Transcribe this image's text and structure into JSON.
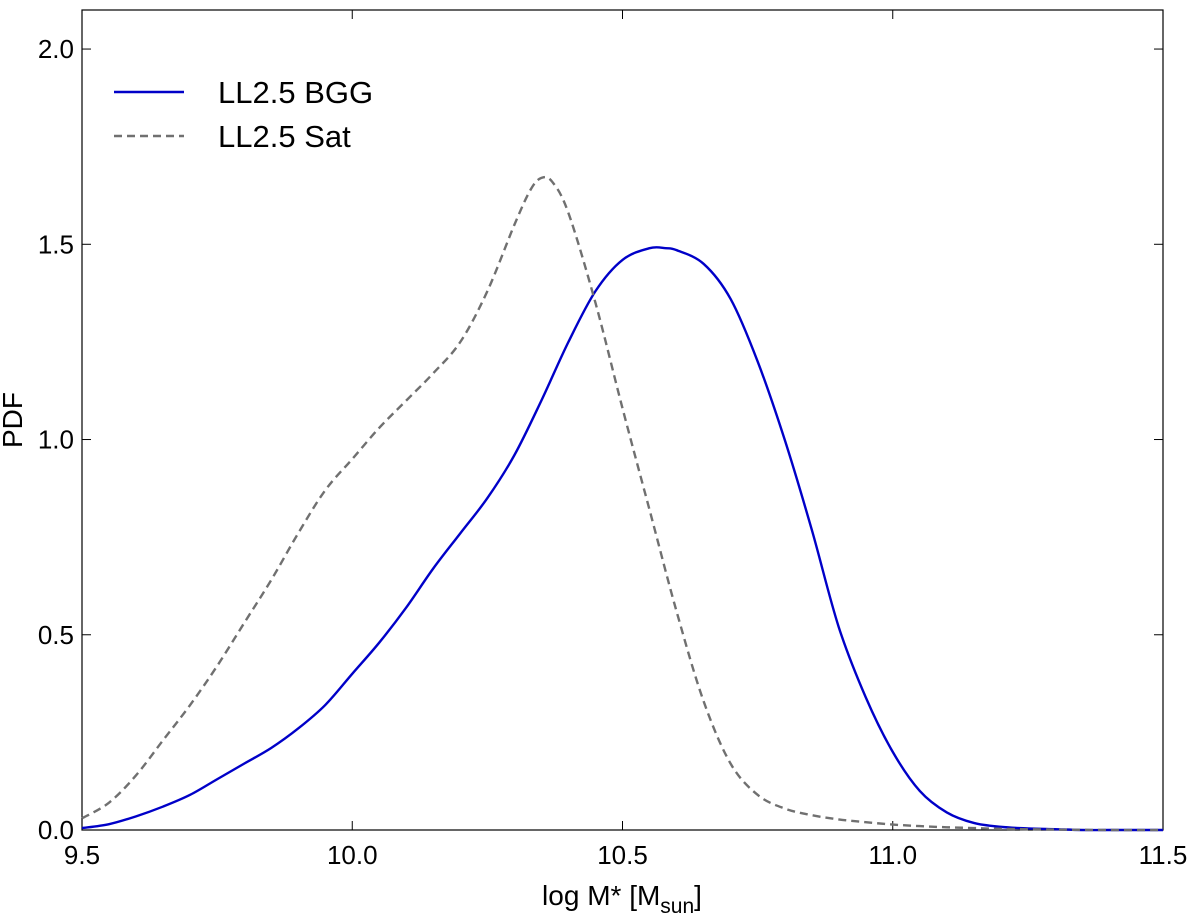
{
  "chart_data": {
    "type": "line",
    "title": "",
    "xlabel_main": "log M* [M",
    "xlabel_sub": "sun",
    "xlabel_end": "]",
    "ylabel": "PDF",
    "xlim": [
      9.5,
      11.5
    ],
    "ylim": [
      0.0,
      2.1
    ],
    "grid": false,
    "legend_position": "top-left",
    "x_ticks": [
      9.5,
      10.0,
      10.5,
      11.0,
      11.5
    ],
    "x_tick_labels": [
      "9.5",
      "10.0",
      "10.5",
      "11.0",
      "11.5"
    ],
    "y_ticks": [
      0.0,
      0.5,
      1.0,
      1.5,
      2.0
    ],
    "y_tick_labels": [
      "0.0",
      "0.5",
      "1.0",
      "1.5",
      "2.0"
    ],
    "series": [
      {
        "name": "LL2.5 BGG",
        "style": "solid",
        "color": "#0000c8",
        "x": [
          9.5,
          9.55,
          9.6,
          9.65,
          9.7,
          9.75,
          9.8,
          9.85,
          9.9,
          9.95,
          10.0,
          10.05,
          10.1,
          10.15,
          10.2,
          10.25,
          10.3,
          10.35,
          10.4,
          10.45,
          10.5,
          10.55,
          10.58,
          10.6,
          10.65,
          10.7,
          10.75,
          10.8,
          10.85,
          10.9,
          10.95,
          11.0,
          11.05,
          11.1,
          11.15,
          11.2,
          11.25,
          11.3,
          11.35,
          11.4,
          11.5
        ],
        "y": [
          0.005,
          0.015,
          0.035,
          0.06,
          0.09,
          0.13,
          0.17,
          0.21,
          0.26,
          0.32,
          0.4,
          0.48,
          0.57,
          0.67,
          0.76,
          0.85,
          0.96,
          1.1,
          1.25,
          1.38,
          1.46,
          1.49,
          1.49,
          1.485,
          1.45,
          1.36,
          1.2,
          1.0,
          0.77,
          0.52,
          0.34,
          0.2,
          0.1,
          0.045,
          0.018,
          0.008,
          0.004,
          0.002,
          0.0,
          0.0,
          0.0
        ]
      },
      {
        "name": "LL2.5 Sat",
        "style": "dashed",
        "color": "#707070",
        "x": [
          9.5,
          9.55,
          9.6,
          9.65,
          9.7,
          9.75,
          9.8,
          9.85,
          9.9,
          9.95,
          10.0,
          10.05,
          10.1,
          10.15,
          10.2,
          10.25,
          10.3,
          10.33,
          10.35,
          10.37,
          10.4,
          10.45,
          10.5,
          10.55,
          10.6,
          10.65,
          10.7,
          10.75,
          10.8,
          10.85,
          10.9,
          10.95,
          11.0,
          11.05,
          11.1,
          11.15,
          11.2,
          11.3,
          11.4,
          11.5
        ],
        "y": [
          0.03,
          0.07,
          0.14,
          0.23,
          0.32,
          0.42,
          0.53,
          0.64,
          0.76,
          0.87,
          0.95,
          1.03,
          1.1,
          1.17,
          1.25,
          1.38,
          1.55,
          1.64,
          1.67,
          1.66,
          1.58,
          1.35,
          1.08,
          0.82,
          0.56,
          0.33,
          0.17,
          0.09,
          0.055,
          0.038,
          0.027,
          0.02,
          0.014,
          0.01,
          0.007,
          0.005,
          0.003,
          0.001,
          0.0,
          0.0
        ]
      }
    ]
  }
}
